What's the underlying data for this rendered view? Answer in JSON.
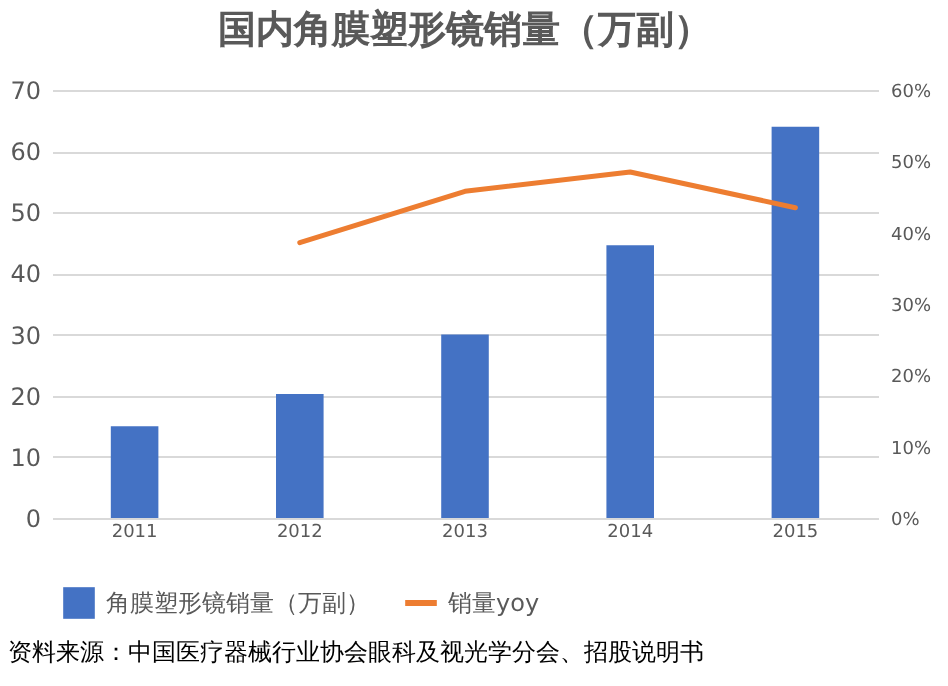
{
  "chart_data": {
    "type": "bar",
    "title": "国内角膜塑形镜销量（万副）",
    "categories": [
      "2011",
      "2012",
      "2013",
      "2014",
      "2015"
    ],
    "series": [
      {
        "name": "角膜塑形镜销量（万副）",
        "color": "#4472c4",
        "values": [
          15,
          20.3,
          30,
          44.6,
          64
        ]
      },
      {
        "name": "销量yoy",
        "type": "line",
        "axis": "y2",
        "color": "#ed7d31",
        "values": [
          null,
          38.6,
          45.8,
          48.5,
          43.5
        ]
      }
    ],
    "ylim": [
      0,
      70
    ],
    "yticks": [
      0,
      10,
      20,
      30,
      40,
      50,
      60,
      70
    ],
    "y2lim": [
      0,
      60
    ],
    "y2ticks": [
      {
        "value": 0,
        "label": "0%"
      },
      {
        "value": 10,
        "label": "10%"
      },
      {
        "value": 20,
        "label": "20%"
      },
      {
        "value": 30,
        "label": "30%"
      },
      {
        "value": 40,
        "label": "40%"
      },
      {
        "value": 50,
        "label": "50%"
      },
      {
        "value": 60,
        "label": "60%"
      }
    ],
    "grid": "y",
    "legend": "bottom",
    "annotations": [
      "资料来源：中国医疗器械行业协会眼科及视光学分会、招股说明书"
    ]
  }
}
